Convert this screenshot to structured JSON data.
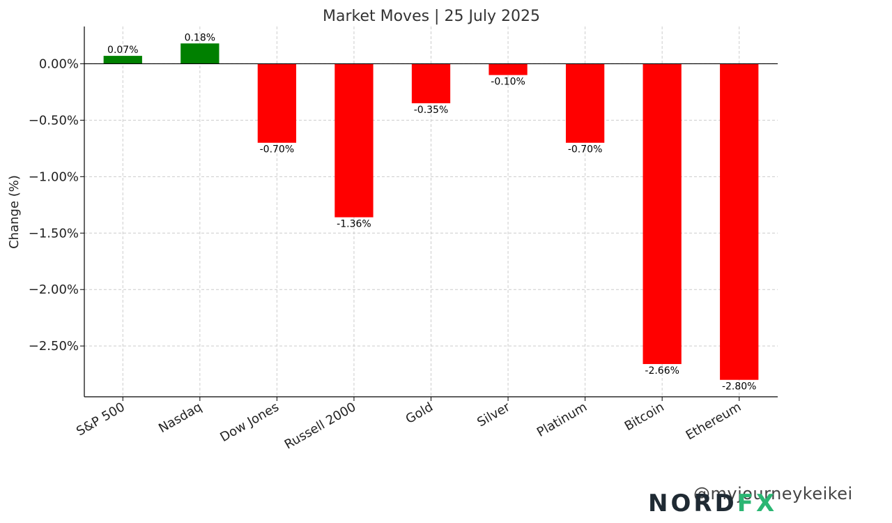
{
  "chart_data": {
    "type": "bar",
    "title": "Market Moves | 25 July 2025",
    "title_icon": "chart-icon",
    "xlabel": "",
    "ylabel": "Change (%)",
    "categories": [
      "S&P 500",
      "Nasdaq",
      "Dow Jones",
      "Russell 2000",
      "Gold",
      "Silver",
      "Platinum",
      "Bitcoin",
      "Ethereum"
    ],
    "values": [
      0.07,
      0.18,
      -0.7,
      -1.36,
      -0.35,
      -0.1,
      -0.7,
      -2.66,
      -2.8
    ],
    "value_labels": [
      "0.07%",
      "0.18%",
      "-0.70%",
      "-1.36%",
      "-0.35%",
      "-0.10%",
      "-0.70%",
      "-2.66%",
      "-2.80%"
    ],
    "ylim": [
      -2.95,
      0.33
    ],
    "yticks": [
      0.0,
      -0.5,
      -1.0,
      -1.5,
      -2.0,
      -2.5
    ],
    "ytick_labels": [
      "0.00%",
      "−0.50%",
      "−1.00%",
      "−1.50%",
      "−2.00%",
      "−2.50%"
    ],
    "grid": true,
    "colors": {
      "positive": "#008000",
      "negative": "#ff0000",
      "grid": "#cccccc",
      "axis": "#000000"
    }
  },
  "watermark": {
    "text": "@myjourneykeikei",
    "logo_text": "NORD",
    "logo_mark": "FX"
  }
}
